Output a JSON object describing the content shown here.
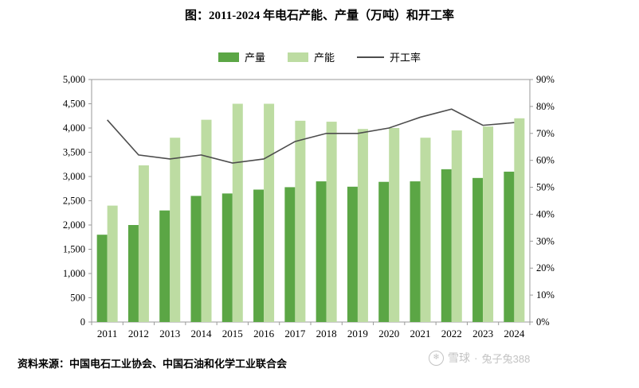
{
  "title": "图：2011-2024 年电石产能、产量（万吨）和开工率",
  "source": "资料来源：中国电石工业协会、中国石油和化学工业联合会",
  "watermark": {
    "icon": "❄",
    "brand": "雪球",
    "separator": "·",
    "user": "兔子兔388"
  },
  "colors": {
    "output": "#5ba645",
    "capacity": "#bddca2",
    "rate_line": "#4d4d4d",
    "axis": "#9a9a9a",
    "text": "#000000"
  },
  "chart_data": {
    "type": "bar+line",
    "title": "图：2011-2024 年电石产能、产量（万吨）和开工率",
    "legend_position": "top",
    "grid": false,
    "categories": [
      "2011",
      "2012",
      "2013",
      "2014",
      "2015",
      "2016",
      "2017",
      "2018",
      "2019",
      "2020",
      "2021",
      "2022",
      "2023",
      "2024"
    ],
    "series": [
      {
        "name": "产量",
        "type": "bar",
        "axis": "left",
        "color": "#5ba645",
        "values": [
          1800,
          2000,
          2300,
          2600,
          2650,
          2730,
          2780,
          2900,
          2790,
          2890,
          2900,
          3150,
          2970,
          3100
        ]
      },
      {
        "name": "产能",
        "type": "bar",
        "axis": "left",
        "color": "#bddca2",
        "values": [
          2400,
          3230,
          3800,
          4170,
          4500,
          4500,
          4150,
          4130,
          3980,
          4000,
          3800,
          3950,
          4030,
          4200
        ]
      },
      {
        "name": "开工率",
        "type": "line",
        "axis": "right",
        "color": "#4d4d4d",
        "values": [
          75,
          62,
          60.5,
          62,
          59,
          60.5,
          67,
          70,
          70,
          72,
          76,
          79,
          73,
          74
        ]
      }
    ],
    "left_axis": {
      "min": 0,
      "max": 5000,
      "step": 500,
      "labels": [
        "0",
        "500",
        "1,000",
        "1,500",
        "2,000",
        "2,500",
        "3,000",
        "3,500",
        "4,000",
        "4,500",
        "5,000"
      ]
    },
    "right_axis": {
      "min": 0,
      "max": 90,
      "step": 10,
      "labels": [
        "0%",
        "10%",
        "20%",
        "30%",
        "40%",
        "50%",
        "60%",
        "70%",
        "80%",
        "90%"
      ]
    }
  }
}
